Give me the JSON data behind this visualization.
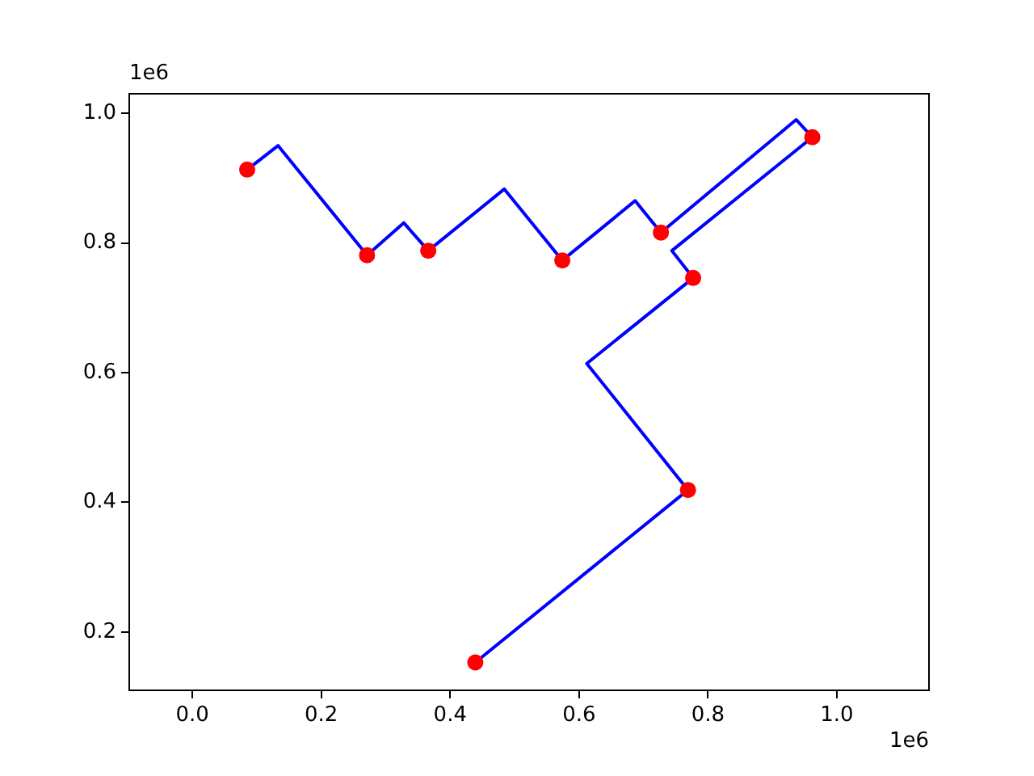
{
  "chart_data": {
    "type": "scatter",
    "series": [
      {
        "type": "line",
        "color": "#0000ff",
        "marker": "none",
        "x": [
          0.085,
          0.133,
          0.271,
          0.328,
          0.366,
          0.484,
          0.574,
          0.687,
          0.727,
          0.937,
          0.962,
          0.744,
          0.777,
          0.612,
          0.769,
          0.439
        ],
        "values": [
          0.913,
          0.95,
          0.781,
          0.831,
          0.788,
          0.883,
          0.773,
          0.865,
          0.816,
          0.99,
          0.963,
          0.788,
          0.746,
          0.614,
          0.419,
          0.153
        ]
      },
      {
        "color": "#ff0000",
        "marker": "circle",
        "x": [
          0.085,
          0.271,
          0.366,
          0.574,
          0.727,
          0.777,
          0.962,
          0.769,
          0.439
        ],
        "values": [
          0.913,
          0.781,
          0.788,
          0.773,
          0.816,
          0.746,
          0.963,
          0.419,
          0.153
        ]
      }
    ],
    "xlim": [
      -0.098,
      1.143
    ],
    "ylim": [
      0.11,
      1.03
    ],
    "xticks": [
      {
        "value": 0,
        "label": "0.0"
      },
      0.2,
      0.4,
      0.6,
      0.8,
      {
        "value": 1,
        "label": "1.0"
      }
    ],
    "yticks": [
      0.2,
      0.4,
      0.6,
      0.8,
      {
        "value": 1,
        "label": "1.0"
      }
    ],
    "annotations": [
      "1e6",
      "1e6"
    ],
    "grid": false,
    "legend": false
  }
}
